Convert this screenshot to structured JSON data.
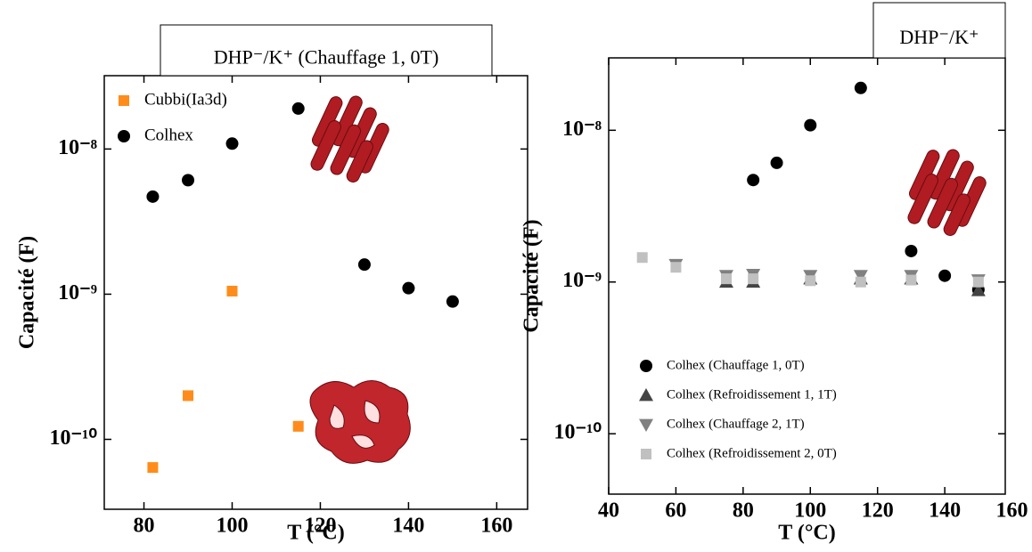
{
  "chart_data": [
    {
      "type": "scatter",
      "title": "DHP⁻/K⁺ (Chauffage 1, 0T)",
      "x_label": "T (°C)",
      "y_label": "Capacité (F)",
      "xlim": [
        71,
        167
      ],
      "xticks": [
        80,
        100,
        120,
        140,
        160
      ],
      "ylim": [
        3.3e-11,
        3.2e-08
      ],
      "log_y": true,
      "yticks": [
        {
          "value": 1e-10,
          "label": "10⁻¹⁰"
        },
        {
          "value": 1e-09,
          "label": "10⁻⁹"
        },
        {
          "value": 1e-08,
          "label": "10⁻⁸"
        }
      ],
      "legend": "upper left",
      "series": [
        {
          "name": "Cubbi(Ia3d)",
          "color": "#ff8c1a",
          "marker": "square",
          "x": [
            82,
            90,
            100,
            115
          ],
          "values": [
            6.4e-11,
            2e-10,
            1.05e-09,
            1.23e-10
          ]
        },
        {
          "name": "Colhex",
          "color": "#000000",
          "marker": "circle",
          "x": [
            82,
            90,
            100,
            115,
            130,
            140,
            150
          ],
          "values": [
            4.7e-09,
            6.1e-09,
            1.09e-08,
            1.9e-08,
            1.6e-09,
            1.1e-09,
            8.9e-10
          ]
        }
      ]
    },
    {
      "type": "scatter",
      "title": "DHP⁻/K⁺",
      "x_label": "T (°C)",
      "y_label": "Capacité (F)",
      "xlim": [
        40,
        158
      ],
      "xticks": [
        40,
        60,
        80,
        100,
        120,
        140,
        160
      ],
      "ylim": [
        4e-11,
        3e-08
      ],
      "log_y": true,
      "yticks": [
        {
          "value": 1e-10,
          "label": "10⁻¹⁰"
        },
        {
          "value": 1e-09,
          "label": "10⁻⁹"
        },
        {
          "value": 1e-08,
          "label": "10⁻⁸"
        }
      ],
      "legend": "lower left",
      "series": [
        {
          "name": "Colhex (Chauffage 1, 0T)",
          "color": "#000000",
          "marker": "circle",
          "x": [
            83,
            90,
            100,
            115,
            130,
            140,
            150
          ],
          "values": [
            4.7e-09,
            6.1e-09,
            1.08e-08,
            1.9e-08,
            1.6e-09,
            1.1e-09,
            8.9e-10
          ]
        },
        {
          "name": "Colhex (Refroidissement 1, 1T)",
          "color": "#444444",
          "marker": "triangle-up",
          "x": [
            75,
            83,
            100,
            115,
            130,
            150
          ],
          "values": [
            1e-09,
            1e-09,
            1.05e-09,
            1.05e-09,
            1.05e-09,
            8.8e-10
          ]
        },
        {
          "name": "Colhex (Chauffage 2, 1T)",
          "color": "#808080",
          "marker": "triangle-down",
          "x": [
            60,
            75,
            83,
            100,
            115,
            130,
            150
          ],
          "values": [
            1.3e-09,
            1.1e-09,
            1.12e-09,
            1.1e-09,
            1.1e-09,
            1.1e-09,
            1.03e-09
          ]
        },
        {
          "name": "Colhex (Refroidissement 2, 0T)",
          "color": "#c0c0c0",
          "marker": "square",
          "x": [
            50,
            60,
            75,
            83,
            100,
            115,
            130,
            150
          ],
          "values": [
            1.45e-09,
            1.25e-09,
            1.05e-09,
            1.05e-09,
            1.02e-09,
            1e-09,
            1.03e-09,
            1e-09
          ]
        }
      ]
    }
  ]
}
